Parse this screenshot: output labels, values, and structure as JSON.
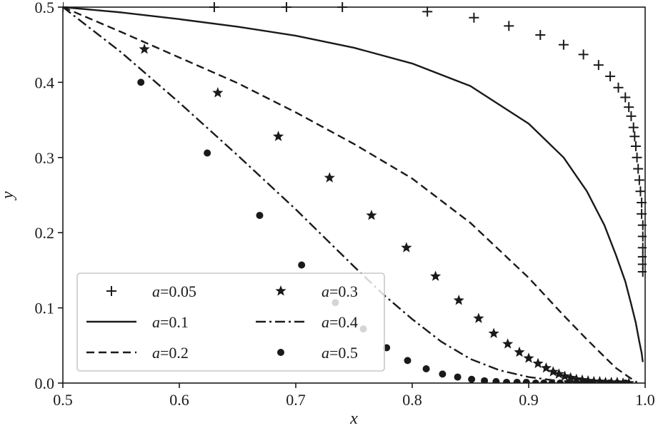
{
  "chart_data": {
    "type": "line",
    "title": "",
    "xlabel": "x",
    "ylabel": "y",
    "xlim": [
      0.5,
      1.0
    ],
    "ylim": [
      0.0,
      0.5
    ],
    "xticks": [
      "0.5",
      "0.6",
      "0.7",
      "0.8",
      "0.9",
      "1.0"
    ],
    "yticks": [
      "0.0",
      "0.1",
      "0.2",
      "0.3",
      "0.4",
      "0.5"
    ],
    "grid": false,
    "legend_position": "lower-left",
    "series": [
      {
        "name": "a=0.05",
        "param": "a",
        "value_text": "=0.05",
        "style": "plus",
        "color": "#1a1a1a",
        "x": [
          0.5,
          0.63,
          0.692,
          0.74,
          0.813,
          0.853,
          0.883,
          0.91,
          0.93,
          0.947,
          0.96,
          0.97,
          0.977,
          0.983,
          0.986,
          0.988,
          0.99,
          0.991,
          0.992,
          0.993,
          0.994,
          0.995,
          0.996,
          0.997,
          0.997,
          0.998,
          0.998,
          0.998,
          0.998,
          0.998,
          0.998
        ],
        "y": [
          0.5,
          0.5,
          0.5,
          0.5,
          0.494,
          0.486,
          0.475,
          0.463,
          0.45,
          0.437,
          0.423,
          0.408,
          0.393,
          0.38,
          0.367,
          0.355,
          0.34,
          0.328,
          0.315,
          0.3,
          0.285,
          0.27,
          0.255,
          0.24,
          0.225,
          0.21,
          0.195,
          0.18,
          0.168,
          0.158,
          0.148
        ]
      },
      {
        "name": "a=0.1",
        "param": "a",
        "value_text": "=0.1",
        "style": "solid",
        "color": "#1a1a1a",
        "x": [
          0.5,
          0.55,
          0.6,
          0.65,
          0.7,
          0.75,
          0.8,
          0.85,
          0.9,
          0.93,
          0.95,
          0.965,
          0.975,
          0.983,
          0.988,
          0.992,
          0.995,
          0.997,
          0.998
        ],
        "y": [
          0.5,
          0.493,
          0.484,
          0.474,
          0.462,
          0.446,
          0.425,
          0.395,
          0.345,
          0.3,
          0.255,
          0.21,
          0.17,
          0.135,
          0.105,
          0.08,
          0.055,
          0.04,
          0.028
        ]
      },
      {
        "name": "a=0.2",
        "param": "a",
        "value_text": "=0.2",
        "style": "dashed",
        "color": "#1a1a1a",
        "x": [
          0.5,
          0.55,
          0.6,
          0.65,
          0.7,
          0.75,
          0.8,
          0.85,
          0.9,
          0.93,
          0.95,
          0.965,
          0.975,
          0.985,
          0.99,
          0.993
        ],
        "y": [
          0.5,
          0.467,
          0.433,
          0.399,
          0.36,
          0.318,
          0.272,
          0.213,
          0.14,
          0.09,
          0.058,
          0.035,
          0.02,
          0.009,
          0.004,
          0.001
        ]
      },
      {
        "name": "a=0.3",
        "param": "a",
        "value_text": "=0.3",
        "style": "star",
        "color": "#1a1a1a",
        "x": [
          0.57,
          0.633,
          0.685,
          0.729,
          0.765,
          0.795,
          0.82,
          0.84,
          0.857,
          0.87,
          0.882,
          0.892,
          0.9,
          0.908,
          0.915,
          0.921,
          0.926,
          0.931,
          0.936,
          0.941,
          0.946,
          0.951,
          0.956,
          0.961,
          0.966,
          0.971,
          0.976,
          0.981,
          0.986
        ],
        "y": [
          0.444,
          0.386,
          0.328,
          0.273,
          0.223,
          0.18,
          0.142,
          0.11,
          0.086,
          0.066,
          0.052,
          0.041,
          0.033,
          0.026,
          0.02,
          0.015,
          0.012,
          0.009,
          0.007,
          0.005,
          0.004,
          0.003,
          0.002,
          0.002,
          0.001,
          0.001,
          0.001,
          0.0,
          0.0
        ]
      },
      {
        "name": "a=0.4",
        "param": "a",
        "value_text": "=0.4",
        "style": "dashdot",
        "color": "#1a1a1a",
        "x": [
          0.5,
          0.55,
          0.6,
          0.65,
          0.7,
          0.75,
          0.775,
          0.8,
          0.825,
          0.85,
          0.875,
          0.9,
          0.925,
          0.95,
          0.975,
          0.99
        ],
        "y": [
          0.5,
          0.44,
          0.373,
          0.303,
          0.231,
          0.155,
          0.118,
          0.085,
          0.055,
          0.032,
          0.017,
          0.008,
          0.003,
          0.001,
          0.0,
          0.0
        ]
      },
      {
        "name": "a=0.5",
        "param": "a",
        "value_text": "=0.5",
        "style": "dot",
        "color": "#1a1a1a",
        "x": [
          0.567,
          0.624,
          0.669,
          0.705,
          0.734,
          0.758,
          0.778,
          0.796,
          0.812,
          0.826,
          0.839,
          0.851,
          0.862,
          0.872,
          0.881,
          0.89,
          0.898,
          0.906,
          0.913,
          0.92,
          0.927,
          0.934,
          0.941,
          0.948,
          0.955,
          0.962,
          0.969,
          0.976,
          0.983
        ],
        "y": [
          0.4,
          0.306,
          0.223,
          0.157,
          0.107,
          0.072,
          0.047,
          0.03,
          0.019,
          0.012,
          0.008,
          0.005,
          0.003,
          0.002,
          0.001,
          0.001,
          0.001,
          0.0,
          0.0,
          0.0,
          0.0,
          0.0,
          0.0,
          0.0,
          0.0,
          0.0,
          0.0,
          0.0,
          0.0
        ]
      }
    ]
  }
}
